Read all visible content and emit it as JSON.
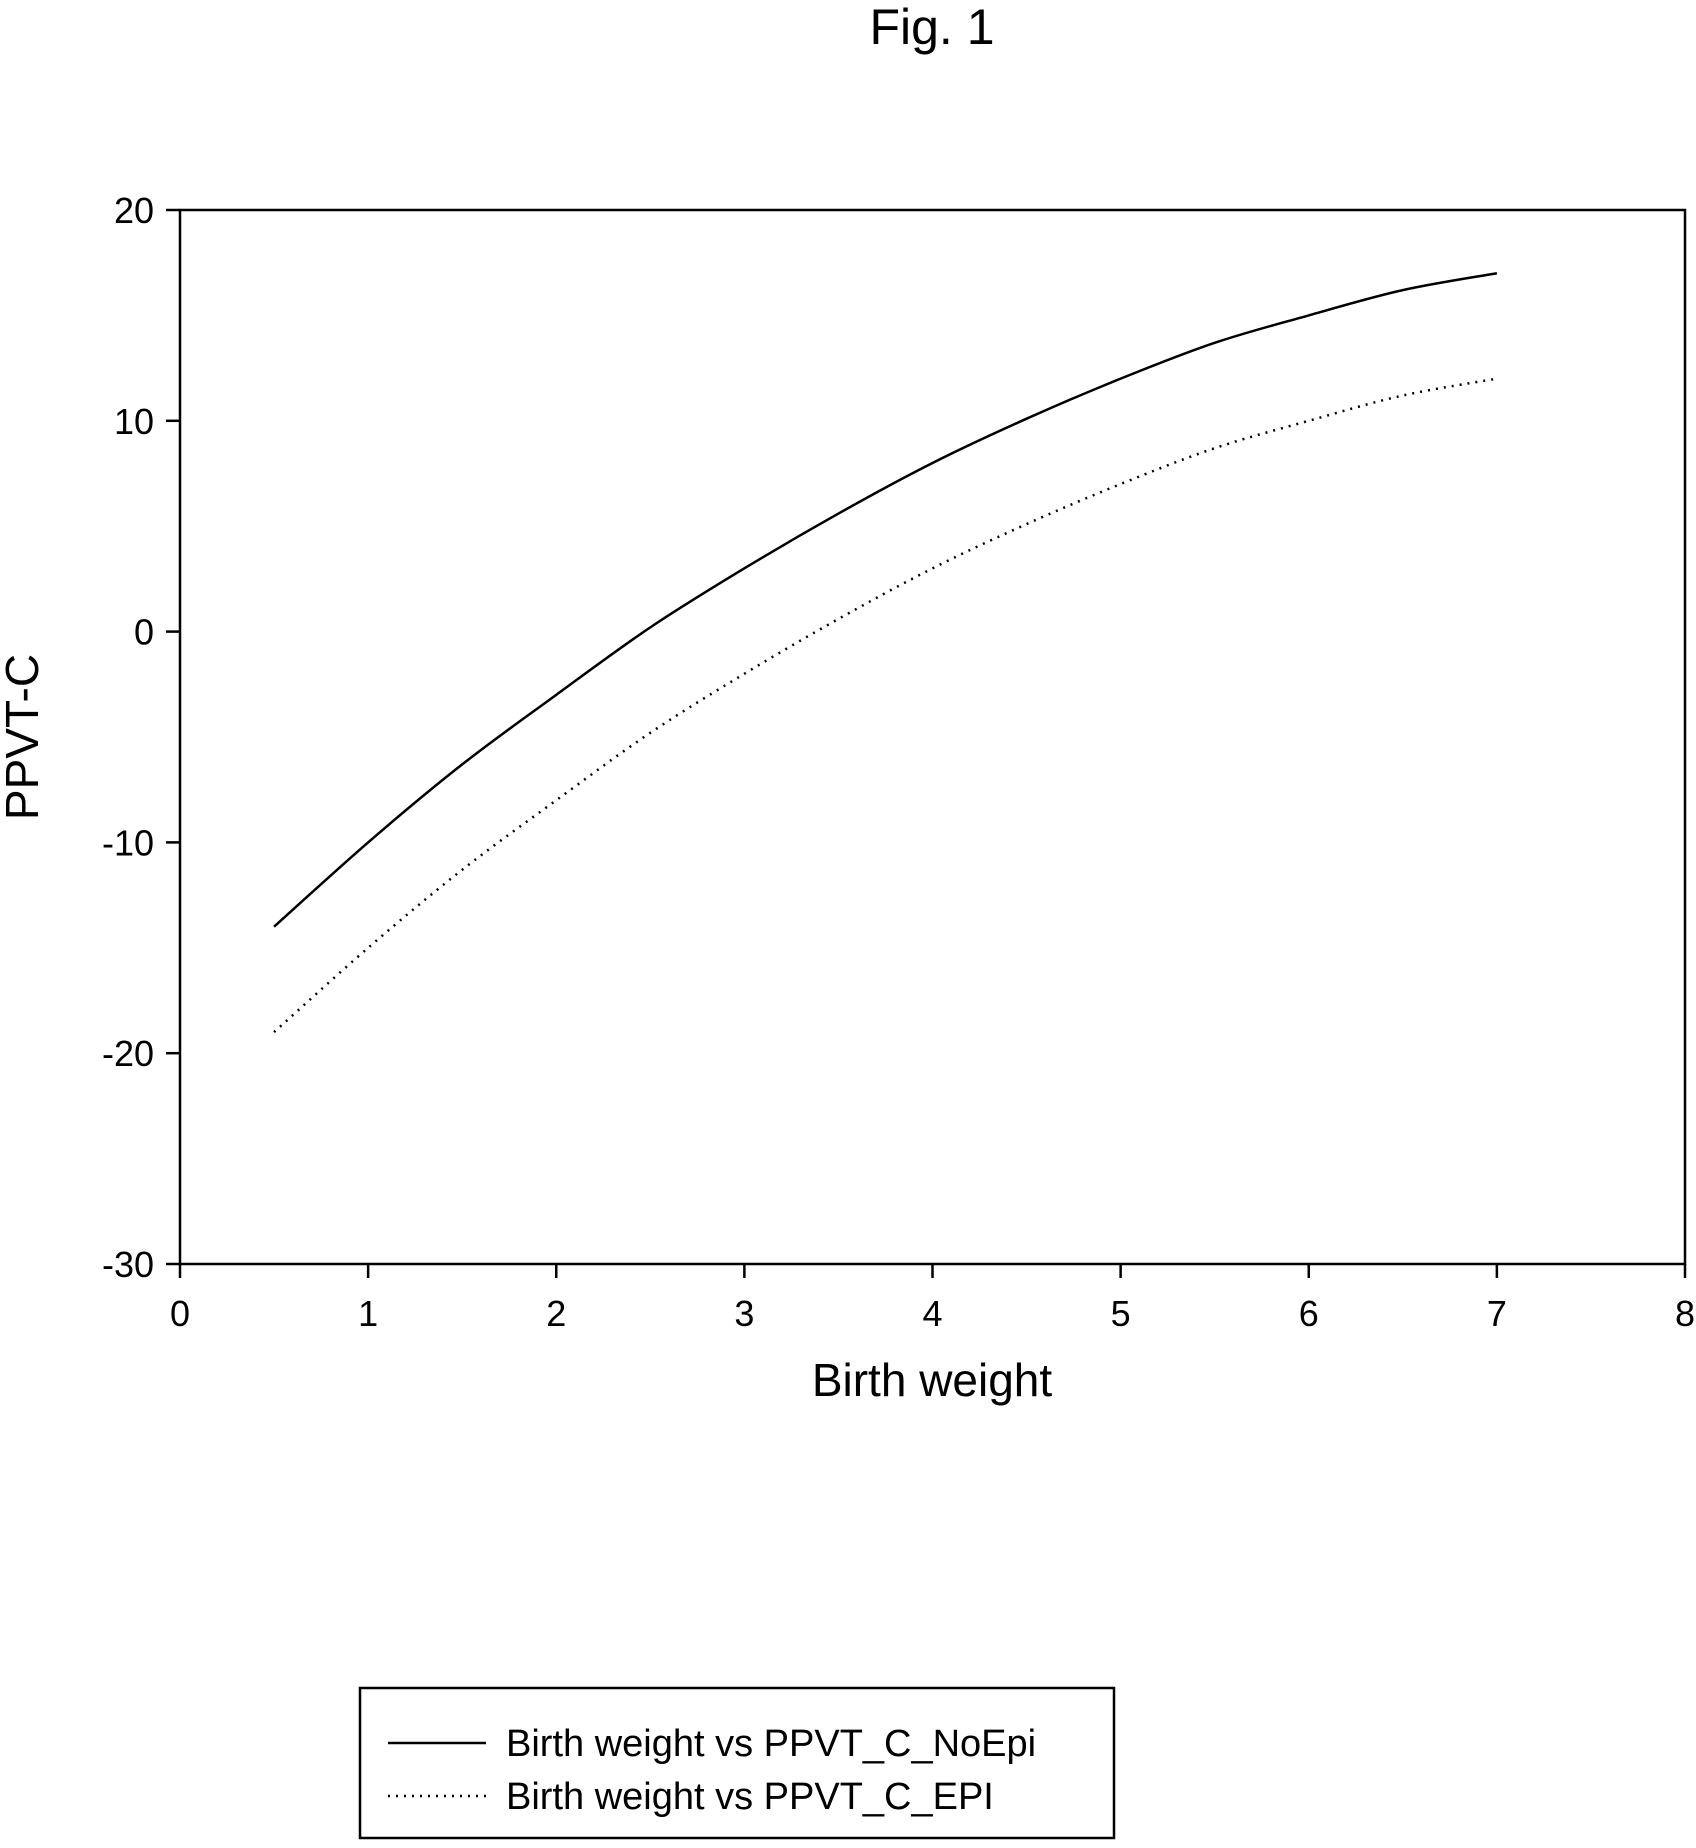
{
  "chart_data": {
    "type": "line",
    "title": "Fig. 1",
    "xlabel": "Birth weight",
    "ylabel": "PPVT-C",
    "xlim": [
      0,
      8
    ],
    "ylim": [
      -30,
      20
    ],
    "x_ticks": [
      "0",
      "1",
      "2",
      "3",
      "4",
      "5",
      "6",
      "7",
      "8"
    ],
    "y_ticks": [
      "20",
      "10",
      "0",
      "-10",
      "-20",
      "-30"
    ],
    "grid": false,
    "legend_position": "bottom-center",
    "series": [
      {
        "name": "Birth weight vs PPVT_C_NoEpi",
        "style": "solid",
        "color": "#000000",
        "x": [
          0.5,
          1.0,
          1.5,
          2.0,
          2.5,
          3.0,
          3.5,
          4.0,
          4.5,
          5.0,
          5.5,
          6.0,
          6.5,
          7.0
        ],
        "y": [
          -14.0,
          -10.0,
          -6.3,
          -3.0,
          0.2,
          3.0,
          5.6,
          8.0,
          10.1,
          12.0,
          13.7,
          15.0,
          16.2,
          17.0
        ]
      },
      {
        "name": "Birth weight vs PPVT_C_EPI",
        "style": "dotted",
        "color": "#000000",
        "x": [
          0.5,
          1.0,
          1.5,
          2.0,
          2.5,
          3.0,
          3.5,
          4.0,
          4.5,
          5.0,
          5.5,
          6.0,
          6.5,
          7.0
        ],
        "y": [
          -19.0,
          -15.0,
          -11.3,
          -8.0,
          -4.8,
          -2.0,
          0.6,
          3.0,
          5.1,
          7.0,
          8.7,
          10.0,
          11.2,
          12.0
        ]
      }
    ]
  }
}
